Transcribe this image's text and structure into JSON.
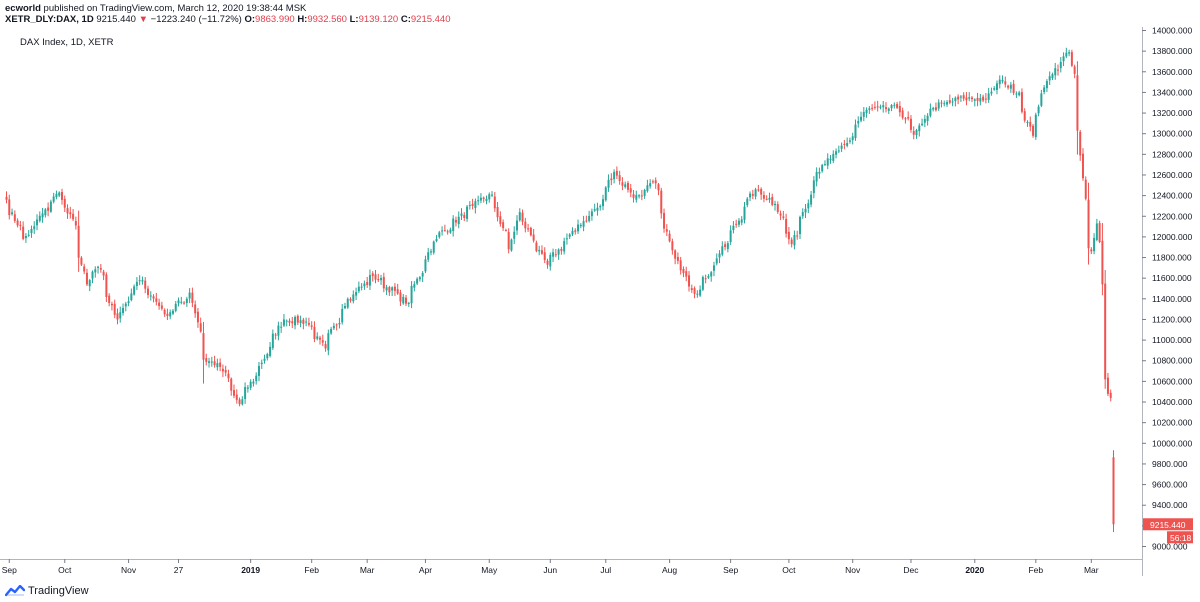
{
  "header": {
    "author": "ecworld",
    "published": " published on TradingView.com, March 12, 2020 19:38:44 MSK",
    "symbol": "XETR_DLY:DAX, 1D",
    "last": "9215.440",
    "arrow": "▼",
    "change": "−1223.240 (−11.72%)",
    "o_label": "O:",
    "o_value": "9863.990",
    "h_label": "H:",
    "h_value": "9932.560",
    "l_label": "L:",
    "l_value": "9139.120",
    "c_label": "C:",
    "c_value": "9215.440"
  },
  "footer": {
    "brand": "TradingView",
    "logo_icon": "tradingview-logo-icon"
  },
  "colors": {
    "up": "#26a69a",
    "down": "#ef5350",
    "price_tag": "#ef5350",
    "axis": "#787b86"
  },
  "chart_data": {
    "type": "candlestick",
    "title": "DAX Index, 1D, XETR",
    "ylim": [
      8900,
      14100
    ],
    "yticks": [
      "14000.000",
      "13800.000",
      "13600.000",
      "13400.000",
      "13200.000",
      "13000.000",
      "12800.000",
      "12600.000",
      "12400.000",
      "12200.000",
      "12000.000",
      "11800.000",
      "11600.000",
      "11400.000",
      "11200.000",
      "11000.000",
      "10800.000",
      "10600.000",
      "10400.000",
      "10200.000",
      "10000.000",
      "9800.000",
      "9600.000",
      "9400.000",
      "9200.000",
      "9000.000"
    ],
    "xticks": [
      "Sep",
      "Oct",
      "Nov",
      "27",
      "2019",
      "Feb",
      "Mar",
      "Apr",
      "May",
      "Jun",
      "Jul",
      "Aug",
      "Sep",
      "Oct",
      "Nov",
      "Dec",
      "2020",
      "Feb",
      "Mar"
    ],
    "last_price_label": "9215.440",
    "countdown_label": "56:18",
    "last_price": 9215.44,
    "grid": false,
    "series": [
      {
        "anchors": [
          [
            "2018-08-31",
            12360
          ],
          [
            "2018-09-10",
            11980
          ],
          [
            "2018-09-27",
            12430
          ],
          [
            "2018-10-05",
            12110
          ],
          [
            "2018-10-11",
            11540
          ],
          [
            "2018-10-17",
            11710
          ],
          [
            "2018-10-26",
            11200
          ],
          [
            "2018-11-07",
            11580
          ],
          [
            "2018-11-20",
            11250
          ],
          [
            "2018-11-30",
            11400
          ],
          [
            "2018-12-03",
            11460
          ],
          [
            "2018-12-10",
            10810
          ],
          [
            "2018-12-18",
            10740
          ],
          [
            "2018-12-27",
            10380
          ],
          [
            "2019-01-07",
            10750
          ],
          [
            "2019-01-18",
            11200
          ],
          [
            "2019-01-30",
            11180
          ],
          [
            "2019-02-08",
            10920
          ],
          [
            "2019-02-20",
            11400
          ],
          [
            "2019-03-05",
            11620
          ],
          [
            "2019-03-22",
            11360
          ],
          [
            "2019-04-05",
            11980
          ],
          [
            "2019-04-24",
            12300
          ],
          [
            "2019-05-03",
            12410
          ],
          [
            "2019-05-13",
            11880
          ],
          [
            "2019-05-17",
            12240
          ],
          [
            "2019-05-31",
            11730
          ],
          [
            "2019-06-17",
            12120
          ],
          [
            "2019-06-27",
            12300
          ],
          [
            "2019-07-04",
            12630
          ],
          [
            "2019-07-15",
            12380
          ],
          [
            "2019-07-25",
            12520
          ],
          [
            "2019-08-02",
            11870
          ],
          [
            "2019-08-15",
            11450
          ],
          [
            "2019-08-30",
            11940
          ],
          [
            "2019-09-13",
            12460
          ],
          [
            "2019-09-24",
            12320
          ],
          [
            "2019-10-02",
            11930
          ],
          [
            "2019-10-15",
            12630
          ],
          [
            "2019-10-30",
            12910
          ],
          [
            "2019-11-08",
            13230
          ],
          [
            "2019-11-25",
            13250
          ],
          [
            "2019-12-03",
            12990
          ],
          [
            "2019-12-12",
            13250
          ],
          [
            "2019-12-27",
            13340
          ],
          [
            "2020-01-08",
            13340
          ],
          [
            "2020-01-16",
            13520
          ],
          [
            "2020-01-24",
            13400
          ],
          [
            "2020-01-31",
            12980
          ],
          [
            "2020-02-07",
            13510
          ],
          [
            "2020-02-19",
            13790
          ],
          [
            "2020-02-21",
            13580
          ],
          [
            "2020-02-24",
            13030
          ],
          [
            "2020-02-25",
            12790
          ],
          [
            "2020-02-27",
            12370
          ],
          [
            "2020-02-28",
            11890
          ],
          [
            "2020-03-02",
            11860
          ],
          [
            "2020-03-03",
            11990
          ],
          [
            "2020-03-04",
            12130
          ],
          [
            "2020-03-05",
            11950
          ],
          [
            "2020-03-06",
            11540
          ],
          [
            "2020-03-09",
            10620
          ],
          [
            "2020-03-10",
            10480
          ],
          [
            "2020-03-11",
            10440
          ],
          [
            "2020-03-12",
            9215.44
          ]
        ],
        "last_candle": {
          "date": "2020-03-12",
          "open": 9863.99,
          "high": 9932.56,
          "low": 9139.12,
          "close": 9215.44
        }
      }
    ]
  }
}
